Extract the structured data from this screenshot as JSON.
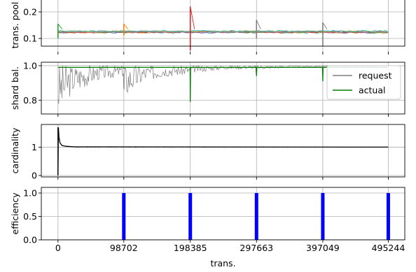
{
  "chart_data": [
    {
      "type": "line",
      "ylabel": "trans. pool",
      "yticks": [
        0.1,
        0.2
      ],
      "ylim": [
        0.05,
        0.25
      ],
      "series_colors": [
        "#1f77b4",
        "#ff7f0e",
        "#2ca02c",
        "#d62728",
        "#9467bd",
        "#8c564b",
        "#e377c2",
        "#7f7f7f",
        "#bcbd22",
        "#17becf"
      ],
      "baseline": 0.125,
      "spikes": [
        {
          "x": 0,
          "min": 0.1,
          "max": 0.155,
          "color": "#2ca02c"
        },
        {
          "x": 98702,
          "min": 0.11,
          "max": 0.155,
          "color": "#ff7f0e"
        },
        {
          "x": 198385,
          "min": 0.055,
          "max": 0.22,
          "color": "#d62728"
        },
        {
          "x": 297663,
          "min": 0.1,
          "max": 0.17,
          "color": "#7f7f7f"
        },
        {
          "x": 397049,
          "min": 0.07,
          "max": 0.16,
          "color": "#7f7f7f"
        }
      ]
    },
    {
      "type": "line",
      "ylabel": "shard bal.",
      "yticks": [
        0.8,
        1.0
      ],
      "ylim": [
        0.72,
        1.02
      ],
      "legend": {
        "position": "center-right",
        "entries": [
          {
            "label": "request",
            "color": "#7f7f7f"
          },
          {
            "label": "actual",
            "color": "#008000"
          }
        ]
      },
      "series": [
        {
          "name": "request",
          "color": "#7f7f7f",
          "x": [
            0,
            20000,
            40000,
            60000,
            98000,
            98702,
            99500,
            130000,
            160000,
            198000,
            198385,
            199000,
            250000,
            297000,
            297663,
            298500,
            350000,
            396500,
            397049,
            398000,
            450000,
            495244
          ],
          "y": [
            0.86,
            0.92,
            0.94,
            0.96,
            0.97,
            0.8,
            0.91,
            0.955,
            0.97,
            0.975,
            0.92,
            0.98,
            0.99,
            0.992,
            0.96,
            0.99,
            0.995,
            0.996,
            0.96,
            0.995,
            0.998,
            0.998
          ]
        },
        {
          "name": "actual",
          "color": "#008000",
          "x": [
            0,
            98000,
            98702,
            99000,
            198000,
            198385,
            198800,
            297000,
            297663,
            298000,
            396500,
            397049,
            397500,
            495244
          ],
          "y": [
            0.99,
            0.99,
            0.985,
            0.99,
            0.99,
            0.79,
            0.99,
            0.99,
            0.94,
            0.99,
            0.99,
            0.91,
            0.99,
            0.99
          ]
        }
      ]
    },
    {
      "type": "line",
      "ylabel": "cardinality",
      "yticks": [
        0,
        1
      ],
      "ylim": [
        -0.05,
        1.8
      ],
      "series": [
        {
          "color": "#000000",
          "x": [
            0,
            600,
            1500,
            3000,
            6000,
            12000,
            25000,
            495244
          ],
          "y": [
            0.0,
            1.7,
            1.35,
            1.15,
            1.06,
            1.03,
            1.01,
            1.0
          ]
        }
      ]
    },
    {
      "type": "bar",
      "ylabel": "efficiency",
      "xlabel": "trans.",
      "yticks": [
        0.0,
        0.5,
        1.0
      ],
      "ylim": [
        0.0,
        1.12
      ],
      "xticks": [
        0,
        98702,
        198385,
        297663,
        397049,
        495244
      ],
      "xlim": [
        -25000,
        520000
      ],
      "bar_color": "#0000ff",
      "bars": [
        {
          "x": 98702,
          "value": 1.0
        },
        {
          "x": 198385,
          "value": 1.0
        },
        {
          "x": 297663,
          "value": 1.0
        },
        {
          "x": 397049,
          "value": 1.0
        },
        {
          "x": 495244,
          "value": 1.0
        }
      ]
    }
  ]
}
